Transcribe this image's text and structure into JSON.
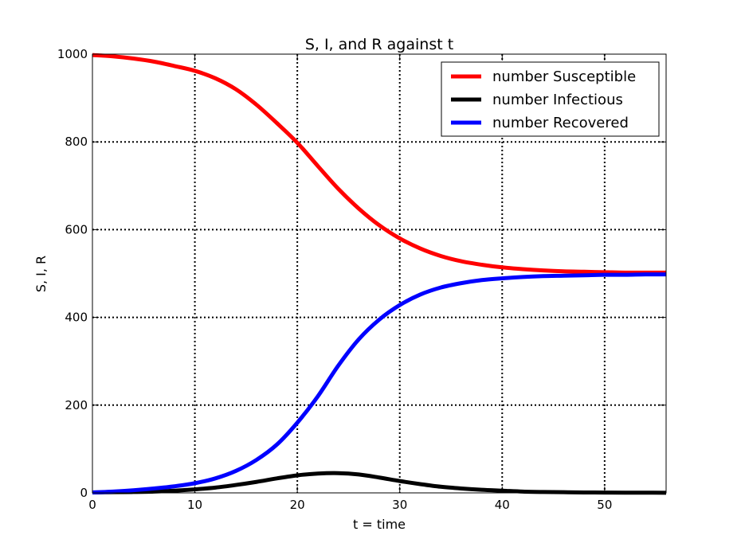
{
  "chart_data": {
    "type": "line",
    "title": "S, I, and R against t",
    "xlabel": "t = time",
    "ylabel": "S, I, R",
    "xlim": [
      0,
      56
    ],
    "ylim": [
      0,
      1000
    ],
    "grid": true,
    "grid_style": "dotted",
    "legend_position": "upper-right",
    "x_ticks": [
      0,
      10,
      20,
      30,
      40,
      50
    ],
    "y_ticks": [
      0,
      200,
      400,
      600,
      800,
      1000
    ],
    "x": [
      0,
      2,
      4,
      6,
      8,
      10,
      12,
      14,
      16,
      18,
      20,
      22,
      24,
      26,
      28,
      30,
      32,
      34,
      36,
      38,
      40,
      42,
      44,
      46,
      48,
      50,
      52,
      54,
      56
    ],
    "series": [
      {
        "name": "number Susceptible",
        "color": "#ff0000",
        "values": [
          998,
          995,
          990,
          983,
          973,
          962,
          945,
          920,
          885,
          843,
          798,
          745,
          693,
          648,
          610,
          580,
          557,
          540,
          528,
          520,
          514,
          510,
          507,
          505,
          504,
          503,
          502,
          502,
          502
        ]
      },
      {
        "name": "number Infectious",
        "color": "#000000",
        "values": [
          1,
          1.5,
          2,
          3,
          5,
          8,
          12,
          18,
          25,
          33,
          40,
          44,
          45,
          42,
          35,
          27,
          20,
          14,
          10,
          7,
          5,
          3,
          2,
          1.5,
          1,
          0.7,
          0.5,
          0.4,
          0.3
        ]
      },
      {
        "name": "number Recovered",
        "color": "#0000ff",
        "values": [
          1,
          3,
          6,
          10,
          15,
          22,
          33,
          50,
          75,
          110,
          160,
          220,
          290,
          350,
          395,
          428,
          452,
          468,
          478,
          485,
          489,
          492,
          494,
          495,
          496,
          497,
          497,
          498,
          498
        ]
      }
    ]
  }
}
